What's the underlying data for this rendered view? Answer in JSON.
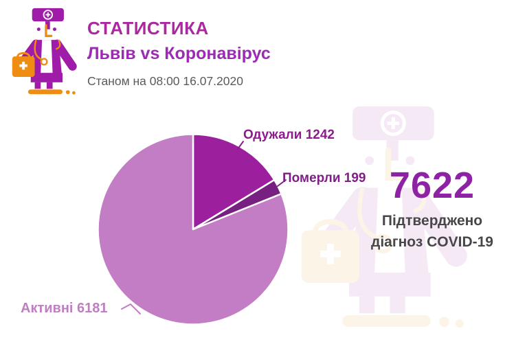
{
  "header": {
    "title": "СТАТИСТИКА",
    "subtitle": "Львів vs Коронавірус",
    "date_line": "Станом на 08:00 16.07.2020"
  },
  "summary": {
    "confirmed_value": "7622",
    "caption_line1": "Підтверджено",
    "caption_line2": "діагноз COVID-19"
  },
  "chart_data": {
    "type": "pie",
    "title": "",
    "total": 7622,
    "start_angle_deg": 0,
    "direction": "clockwise",
    "grid": false,
    "legend": "callout labels with leader lines",
    "slices": [
      {
        "key": "recovered",
        "name": "Одужали",
        "value": 1242,
        "label": "Одужали 1242",
        "color": "#9c1f9e",
        "label_color": "#8e1b8e"
      },
      {
        "key": "died",
        "name": "Померли",
        "value": 199,
        "label": "Померли 199",
        "color": "#772082",
        "label_color": "#7e1f86"
      },
      {
        "key": "active",
        "name": "Активні",
        "value": 6181,
        "label": "Активні 6181",
        "color": "#c37dc4",
        "label_color": "#c07ec2"
      }
    ]
  },
  "palette": {
    "background": "#ffffff",
    "title_text": "#aa28a0",
    "subtitle_text": "#9c2bb4",
    "date_text": "#5a5a5c",
    "big_number_text": "#8e21a4",
    "caption_text": "#47474a",
    "icon_purple": "#9e1ca8",
    "icon_orange": "#ef8d13",
    "slice_separator": "#ffffff"
  },
  "icons": {
    "doctor": "doctor-icon",
    "watermark": "doctor-watermark-icon"
  }
}
